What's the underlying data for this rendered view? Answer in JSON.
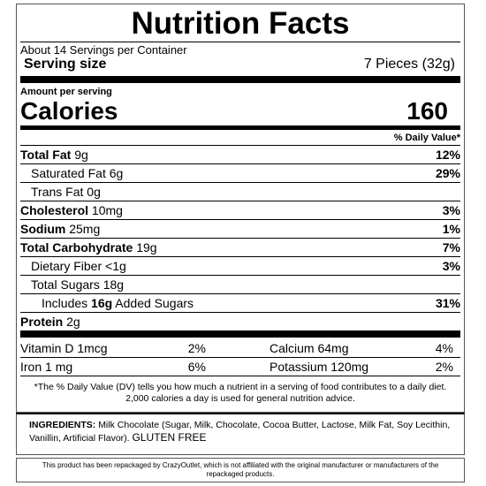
{
  "title": "Nutrition Facts",
  "servings": "About 14 Servings per Container",
  "serving_size": {
    "label": "Serving size",
    "value": "7 Pieces",
    "grams": "(32g)"
  },
  "amount_per_serving": "Amount per serving",
  "calories": {
    "label": "Calories",
    "value": "160"
  },
  "dv_header": "% Daily Value*",
  "nutrients": [
    {
      "name": "Total Fat",
      "amount": "9g",
      "dv": "12%"
    },
    {
      "name": "Saturated Fat",
      "amount": "6g",
      "dv": "29%"
    },
    {
      "name": "Trans Fat",
      "amount": "0g"
    },
    {
      "name": "Cholesterol",
      "amount": "10mg",
      "dv": "3%"
    },
    {
      "name": "Sodium",
      "amount": "25mg",
      "dv": "1%"
    },
    {
      "name": "Total Carbohydrate",
      "amount": "19g",
      "dv": "7%"
    },
    {
      "name": "Dietary Fiber",
      "amount": "<1g",
      "dv": "3%"
    },
    {
      "name": "Total Sugars",
      "amount": "18g"
    },
    {
      "name": "Added Sugars",
      "prefix": "Includes",
      "amount": "16g",
      "dv": "31%"
    },
    {
      "name": "Protein",
      "amount": "2g"
    }
  ],
  "vitamins": [
    [
      {
        "name": "Vitamin D",
        "amount": "1mcg",
        "dv": "2%"
      },
      {
        "name": "Calcium",
        "amount": "64mg",
        "dv": "4%"
      }
    ],
    [
      {
        "name": "Iron",
        "amount": "1 mg",
        "dv": "6%"
      },
      {
        "name": "Potassium",
        "amount": "120mg",
        "dv": "2%"
      }
    ]
  ],
  "footnote": [
    "*The % Daily Value (DV) tells you how much a nutrient in a serving of food contributes to a daily diet.",
    "2,000 calories a day is used for general nutrition advice."
  ],
  "ingredients": {
    "label": "INGREDIENTS:",
    "text": "Milk Chocolate (Sugar, Milk, Chocolate, Cocoa Butter, Lactose, Milk Fat, Soy Lecithin, Vanillin, Artificial Flavor).",
    "note": "GLUTEN FREE"
  },
  "disclaimer": "This product has been repackaged by CrazyOutlet, which is not affiliated with the original manufacturer or manufacturers of the repackaged products."
}
